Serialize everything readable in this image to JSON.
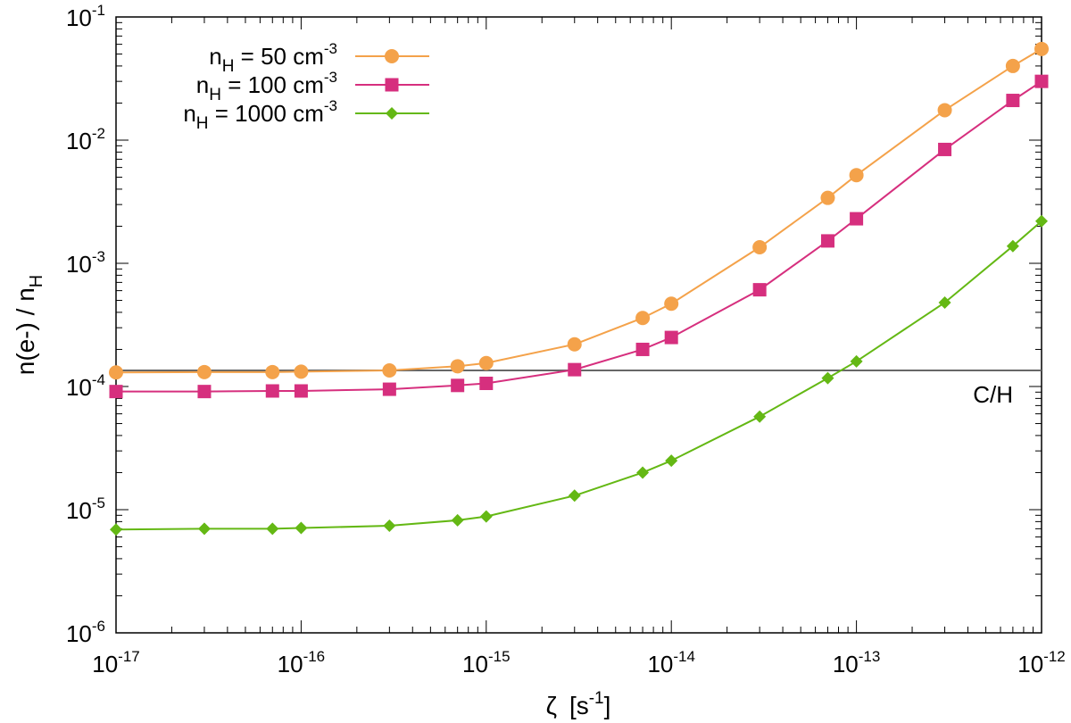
{
  "chart_data": {
    "type": "line",
    "xscale": "log",
    "yscale": "log",
    "xlim": [
      1e-17,
      1e-12
    ],
    "ylim": [
      1e-06,
      0.1
    ],
    "grid": false,
    "legend_position": "top-left",
    "x_ticks": [
      {
        "base": "10",
        "exp": "-17",
        "value": 1e-17
      },
      {
        "base": "10",
        "exp": "-16",
        "value": 1e-16
      },
      {
        "base": "10",
        "exp": "-15",
        "value": 1e-15
      },
      {
        "base": "10",
        "exp": "-14",
        "value": 1e-14
      },
      {
        "base": "10",
        "exp": "-13",
        "value": 1e-13
      },
      {
        "base": "10",
        "exp": "-12",
        "value": 1e-12
      }
    ],
    "y_ticks": [
      {
        "base": "10",
        "exp": "-6",
        "value": 1e-06
      },
      {
        "base": "10",
        "exp": "-5",
        "value": 1e-05
      },
      {
        "base": "10",
        "exp": "-4",
        "value": 0.0001
      },
      {
        "base": "10",
        "exp": "-3",
        "value": 0.001
      },
      {
        "base": "10",
        "exp": "-2",
        "value": 0.01
      },
      {
        "base": "10",
        "exp": "-1",
        "value": 0.1
      }
    ],
    "xlabel": {
      "symbol": "ζ",
      "unit_open": "[s",
      "unit_exp": "-1",
      "unit_close": "]"
    },
    "ylabel": {
      "part1": "n(e-) / n",
      "sub": "H"
    },
    "reference_line": {
      "label": "C/H",
      "value": 0.000135,
      "color": "#666666"
    },
    "x": [
      1e-17,
      3e-17,
      7e-17,
      1e-16,
      3e-16,
      7e-16,
      1e-15,
      3e-15,
      7e-15,
      1e-14,
      3e-14,
      7e-14,
      1e-13,
      3e-13,
      7e-13,
      1e-12
    ],
    "series": [
      {
        "name": "n_H = 50 cm^-3",
        "legend": {
          "n": "n",
          "sub": "H",
          "mid": " =   50 cm",
          "exp": "-3"
        },
        "color": "#f4a24a",
        "marker": "circle",
        "values": [
          0.00013,
          0.000131,
          0.000131,
          0.000132,
          0.000135,
          0.000146,
          0.000155,
          0.00022,
          0.00036,
          0.00047,
          0.00135,
          0.0034,
          0.0052,
          0.0175,
          0.04,
          0.055
        ]
      },
      {
        "name": "n_H = 100 cm^-3",
        "legend": {
          "n": "n",
          "sub": "H",
          "mid": " =  100 cm",
          "exp": "-3"
        },
        "color": "#d62f7e",
        "marker": "square",
        "values": [
          9.1e-05,
          9.1e-05,
          9.2e-05,
          9.2e-05,
          9.5e-05,
          0.000102,
          0.000106,
          0.000137,
          0.0002,
          0.00025,
          0.00061,
          0.00152,
          0.0023,
          0.0084,
          0.021,
          0.03
        ]
      },
      {
        "name": "n_H = 1000 cm^-3",
        "legend": {
          "n": "n",
          "sub": "H",
          "mid": " = 1000 cm",
          "exp": "-3"
        },
        "color": "#64b814",
        "marker": "diamond",
        "values": [
          6.9e-06,
          7e-06,
          7e-06,
          7.1e-06,
          7.4e-06,
          8.2e-06,
          8.8e-06,
          1.3e-05,
          2e-05,
          2.5e-05,
          5.7e-05,
          0.000117,
          0.00016,
          0.00048,
          0.00138,
          0.0022
        ]
      }
    ]
  }
}
